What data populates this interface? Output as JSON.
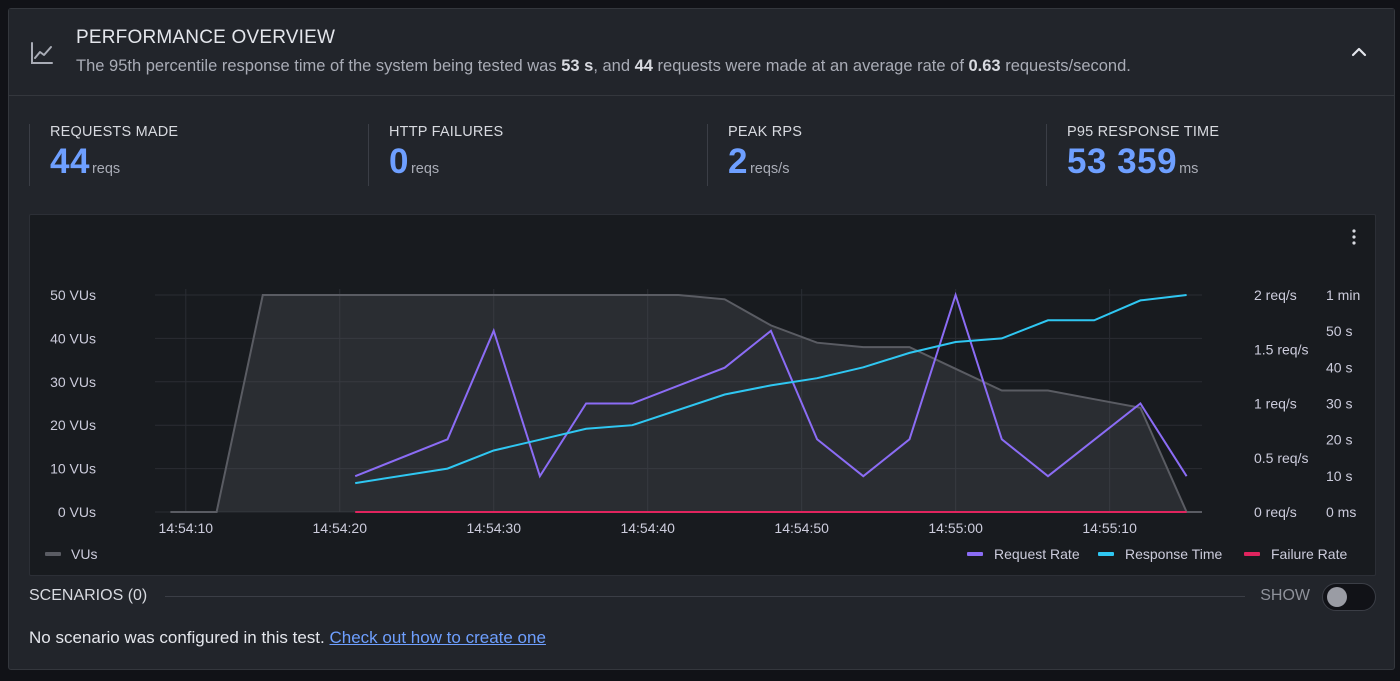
{
  "header": {
    "title": "PERFORMANCE OVERVIEW",
    "summary_prefix": "The 95th percentile response time of the system being tested was ",
    "summary_p95": "53 s",
    "summary_mid": ", and ",
    "summary_requests": "44",
    "summary_mid2": " requests were made at an average rate of ",
    "summary_rate": "0.63",
    "summary_suffix": " requests/second.",
    "icon": "trend-chart-icon",
    "collapse_icon": "chevron-up-icon"
  },
  "stats": [
    {
      "label": "REQUESTS MADE",
      "value": "44",
      "unit": "reqs"
    },
    {
      "label": "HTTP FAILURES",
      "value": "0",
      "unit": "reqs"
    },
    {
      "label": "PEAK RPS",
      "value": "2",
      "unit": "reqs/s"
    },
    {
      "label": "P95 RESPONSE TIME",
      "value": "53 359",
      "unit": "ms"
    }
  ],
  "colors": {
    "accent": "#6e9fff",
    "vus": "#5a5c63",
    "request_rate": "#8b6cf5",
    "response_time": "#2fc7f2",
    "failure_rate": "#e0245e"
  },
  "chart_data": {
    "type": "line",
    "x_ticks": [
      "14:54:10",
      "14:54:20",
      "14:54:30",
      "14:54:40",
      "14:54:50",
      "14:55:00",
      "14:55:10"
    ],
    "xlim": [
      "14:54:08",
      "14:55:16"
    ],
    "axes": {
      "vus": {
        "ticks": [
          "0 VUs",
          "10 VUs",
          "20 VUs",
          "30 VUs",
          "40 VUs",
          "50 VUs"
        ],
        "ylim": [
          0,
          50
        ]
      },
      "request_rate": {
        "ticks": [
          "0 req/s",
          "0.5 req/s",
          "1 req/s",
          "1.5 req/s",
          "2 req/s"
        ],
        "ylim": [
          0,
          2
        ]
      },
      "response_time": {
        "ticks": [
          "0 ms",
          "10 s",
          "20 s",
          "30 s",
          "40 s",
          "50 s",
          "1 min"
        ],
        "ylim": [
          0,
          60
        ]
      }
    },
    "series": [
      {
        "name": "VUs",
        "axis": "vus",
        "style": "area",
        "x": [
          "14:54:09",
          "14:54:12",
          "14:54:15",
          "14:54:42",
          "14:54:45",
          "14:54:48",
          "14:54:51",
          "14:54:54",
          "14:54:57",
          "14:55:00",
          "14:55:03",
          "14:55:06",
          "14:55:09",
          "14:55:12",
          "14:55:15",
          "14:55:16"
        ],
        "values": [
          0,
          0,
          50,
          50,
          49,
          43,
          39,
          38,
          38,
          33,
          28,
          28,
          26,
          24,
          0,
          0
        ]
      },
      {
        "name": "Request Rate",
        "axis": "request_rate",
        "x": [
          "14:54:21",
          "14:54:27",
          "14:54:30",
          "14:54:33",
          "14:54:36",
          "14:54:39",
          "14:54:45",
          "14:54:48",
          "14:54:51",
          "14:54:54",
          "14:54:57",
          "14:55:00",
          "14:55:03",
          "14:55:06",
          "14:55:12",
          "14:55:15"
        ],
        "values": [
          0.33,
          0.67,
          1.67,
          0.33,
          1.0,
          1.0,
          1.33,
          1.67,
          0.67,
          0.33,
          0.67,
          2.0,
          0.67,
          0.33,
          1.0,
          0.33
        ]
      },
      {
        "name": "Response Time",
        "axis": "response_time",
        "x": [
          "14:54:21",
          "14:54:27",
          "14:54:30",
          "14:54:33",
          "14:54:36",
          "14:54:39",
          "14:54:45",
          "14:54:48",
          "14:54:51",
          "14:54:54",
          "14:54:57",
          "14:55:00",
          "14:55:03",
          "14:55:06",
          "14:55:09",
          "14:55:12",
          "14:55:15"
        ],
        "values": [
          8,
          12,
          17,
          20,
          23,
          24,
          32.5,
          35,
          37,
          40,
          44,
          47,
          48,
          53,
          53,
          58.5,
          60
        ]
      },
      {
        "name": "Failure Rate",
        "axis": "request_rate",
        "x": [
          "14:54:21",
          "14:55:15"
        ],
        "values": [
          0,
          0
        ]
      }
    ],
    "legend": {
      "left": [
        "VUs"
      ],
      "right": [
        "Request Rate",
        "Response Time",
        "Failure Rate"
      ]
    },
    "grid": true
  },
  "scenarios": {
    "label": "SCENARIOS (0)",
    "toggle_label": "SHOW",
    "toggle_on": false,
    "message": "No scenario was configured in this test.",
    "link": "Check out how to create one"
  }
}
